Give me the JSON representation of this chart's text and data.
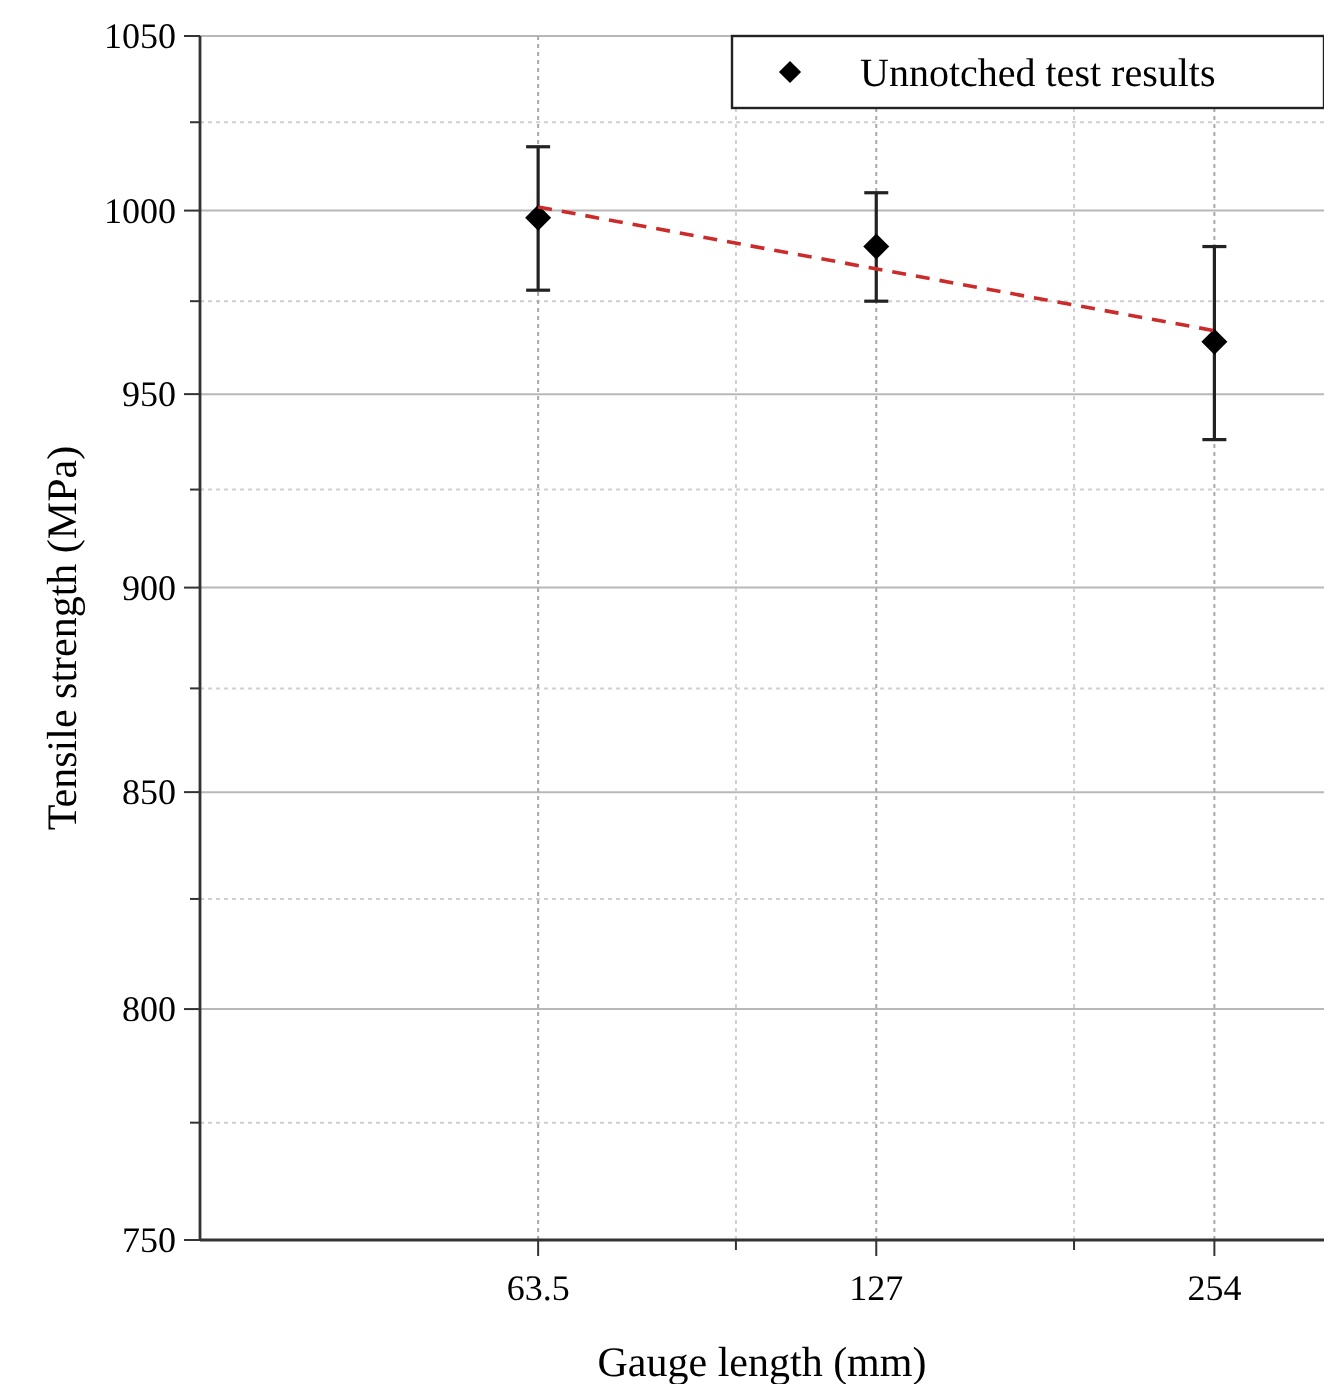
{
  "chart_data": {
    "type": "scatter",
    "xlabel": "Gauge length (mm)",
    "ylabel": "Tensile strength (MPa)",
    "log": "xy",
    "grid": true,
    "legend": "top right",
    "xlim": [
      31.75,
      318
    ],
    "xticks": [
      {
        "value": 63.5,
        "label": "63.5"
      },
      {
        "value": 95.25,
        "label": null
      },
      127,
      {
        "value": 190.5,
        "label": null
      },
      254
    ],
    "ylim": [
      750,
      1050
    ],
    "yticks": [
      750,
      {
        "value": 775,
        "label": null
      },
      800,
      {
        "value": 825,
        "label": null
      },
      850,
      {
        "value": 875,
        "label": null
      },
      900,
      {
        "value": 925,
        "label": null
      },
      950,
      {
        "value": 975,
        "label": null
      },
      1000,
      {
        "value": 1025,
        "label": null
      },
      1050
    ],
    "series": [
      {
        "name": "Unnotched test results",
        "color": "#000000",
        "marker": "diamond",
        "x": [
          63.5,
          127,
          254
        ],
        "values": [
          998,
          990,
          964
        ],
        "errors": [
          [
            978,
            1018
          ],
          [
            975,
            1005
          ],
          [
            938,
            990
          ]
        ]
      },
      {
        "type": "line",
        "color": "#cc2b2b",
        "line_style": "dashed",
        "marker": "none",
        "x": [
          63.5,
          254
        ],
        "values": [
          1001,
          967
        ]
      }
    ]
  }
}
